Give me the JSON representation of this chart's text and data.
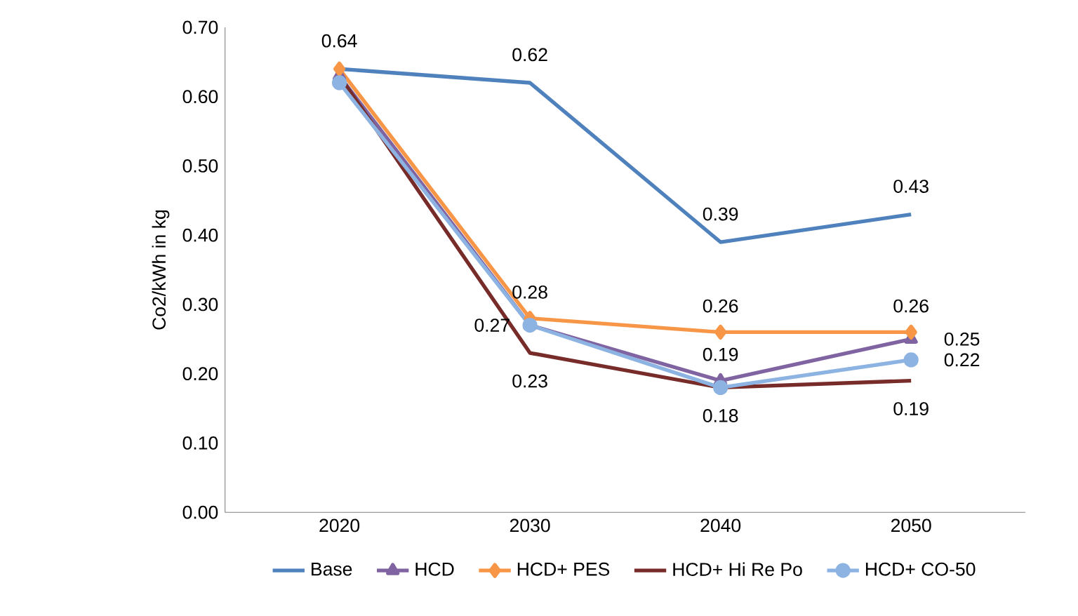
{
  "chart_data": {
    "type": "line",
    "ylabel": "Co2/kWh in kg",
    "categories": [
      "2020",
      "2030",
      "2040",
      "2050"
    ],
    "series": [
      {
        "name": "Base",
        "color": "#4f81bd",
        "marker": "none",
        "values": [
          0.64,
          0.62,
          0.39,
          0.43
        ],
        "value_labels": [
          "0.64",
          "0.62",
          "0.39",
          "0.43"
        ]
      },
      {
        "name": "HCD",
        "color": "#8064a2",
        "marker": "triangle",
        "values": [
          0.63,
          0.27,
          0.19,
          0.25
        ],
        "value_labels": [
          null,
          "0.27",
          "0.19",
          "0.25"
        ]
      },
      {
        "name": "HCD+ PES",
        "color": "#f79646",
        "marker": "diamond",
        "values": [
          0.64,
          0.28,
          0.26,
          0.26
        ],
        "value_labels": [
          null,
          "0.28",
          "0.26",
          "0.26"
        ]
      },
      {
        "name": "HCD+ Hi Re Po",
        "color": "#772c2a",
        "marker": "none",
        "values": [
          0.63,
          0.23,
          0.18,
          0.19
        ],
        "value_labels": [
          null,
          "0.23",
          "0.18",
          "0.19"
        ]
      },
      {
        "name": "HCD+ CO-50",
        "color": "#8db3e2",
        "marker": "circle",
        "values": [
          0.62,
          0.27,
          0.18,
          0.22
        ],
        "value_labels": [
          null,
          null,
          null,
          "0.22"
        ]
      }
    ],
    "ylim": [
      0,
      0.7
    ],
    "yticks": [
      {
        "value": 0,
        "label": "0.00"
      },
      {
        "value": 0.1,
        "label": "0.10"
      },
      {
        "value": 0.2,
        "label": "0.20"
      },
      {
        "value": 0.3,
        "label": "0.30"
      },
      {
        "value": 0.4,
        "label": "0.40"
      },
      {
        "value": 0.5,
        "label": "0.50"
      },
      {
        "value": 0.6,
        "label": "0.60"
      },
      {
        "value": 0.7,
        "label": "0.70"
      }
    ],
    "grid": false,
    "legend": "bottom",
    "line_style": "solid"
  }
}
